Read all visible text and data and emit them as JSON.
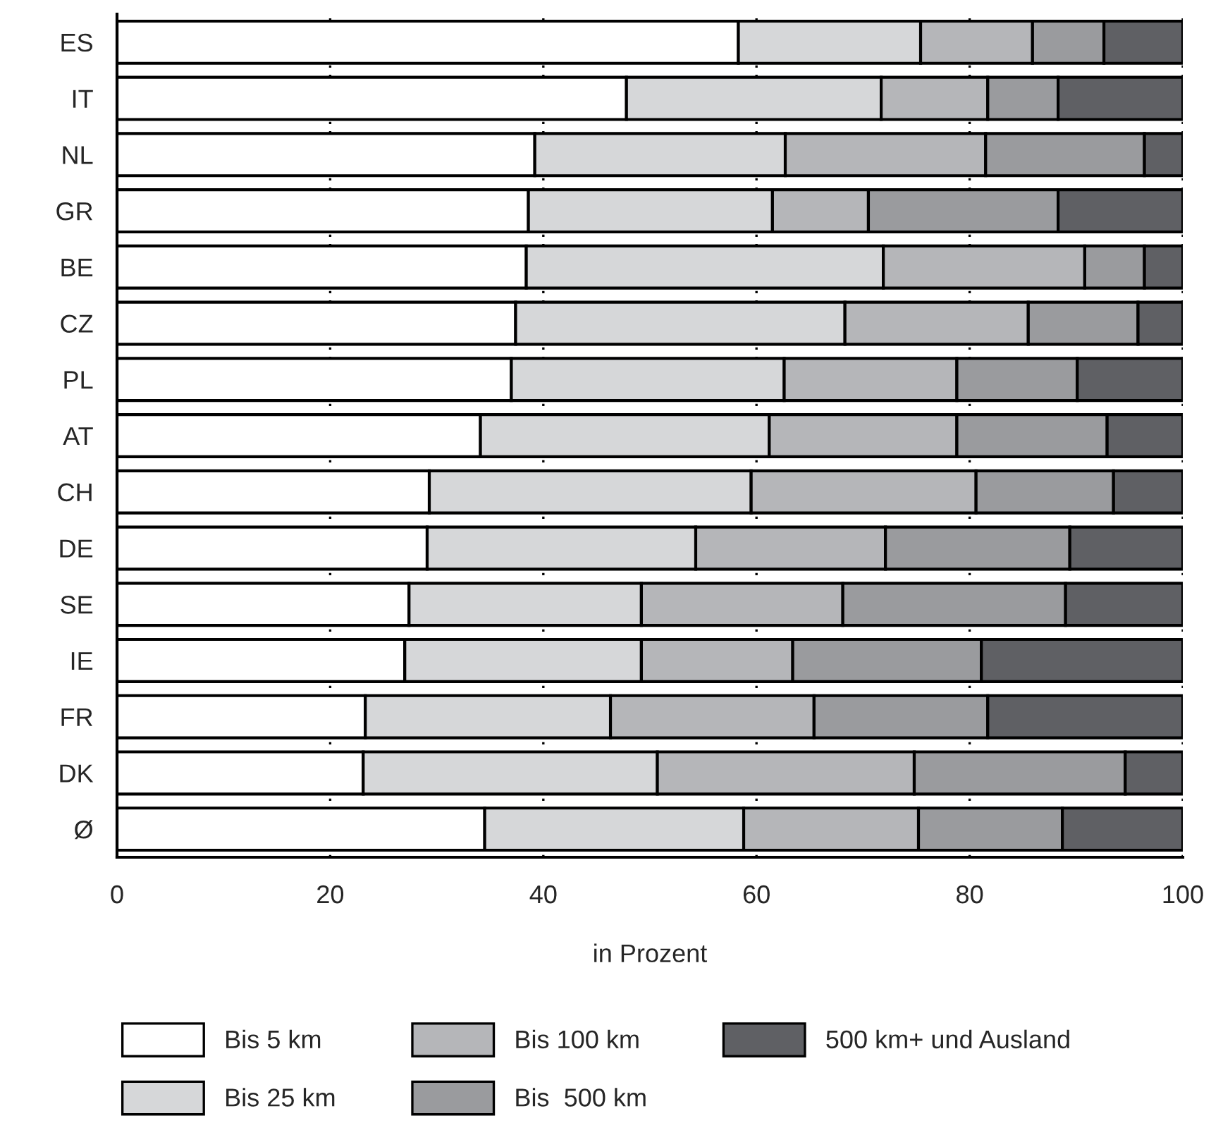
{
  "chart_data": {
    "type": "bar",
    "orientation": "horizontal",
    "stacked": true,
    "xlabel": "in Prozent",
    "categories": [
      "ES",
      "IT",
      "NL",
      "GR",
      "BE",
      "CZ",
      "PL",
      "AT",
      "CH",
      "DE",
      "SE",
      "IE",
      "FR",
      "DK",
      "Ø"
    ],
    "series": [
      {
        "name": "Bis 5 km",
        "color": "#ffffff",
        "values": [
          58.3,
          47.8,
          39.2,
          38.6,
          38.4,
          37.4,
          37.0,
          34.1,
          29.3,
          29.1,
          27.4,
          27.0,
          23.3,
          23.1,
          34.5
        ]
      },
      {
        "name": "Bis 25 km",
        "color": "#d6d7d9",
        "values": [
          17.1,
          23.9,
          23.5,
          22.9,
          33.5,
          30.9,
          25.6,
          27.1,
          30.2,
          25.2,
          21.8,
          22.2,
          23.0,
          27.6,
          24.3
        ]
      },
      {
        "name": "Bis 100 km",
        "color": "#b5b6b9",
        "values": [
          10.5,
          10.0,
          18.8,
          9.0,
          18.9,
          17.2,
          16.2,
          17.6,
          21.1,
          17.8,
          18.9,
          14.2,
          19.1,
          24.1,
          16.4
        ]
      },
      {
        "name": "Bis  500 km",
        "color": "#9a9b9e",
        "values": [
          6.7,
          6.6,
          14.9,
          17.8,
          5.6,
          10.3,
          11.3,
          14.1,
          12.9,
          17.3,
          20.9,
          17.7,
          16.3,
          19.8,
          13.5
        ]
      },
      {
        "name": "500 km+ und Ausland",
        "color": "#5f6064",
        "values": [
          7.4,
          11.7,
          3.6,
          11.7,
          3.6,
          4.2,
          9.9,
          7.1,
          6.5,
          10.6,
          11.0,
          18.9,
          18.3,
          5.4,
          11.3
        ]
      }
    ],
    "xlim": [
      0,
      100
    ],
    "xticks": [
      0,
      20,
      40,
      60,
      80,
      100
    ],
    "grid": "x",
    "legend": "bottom"
  }
}
